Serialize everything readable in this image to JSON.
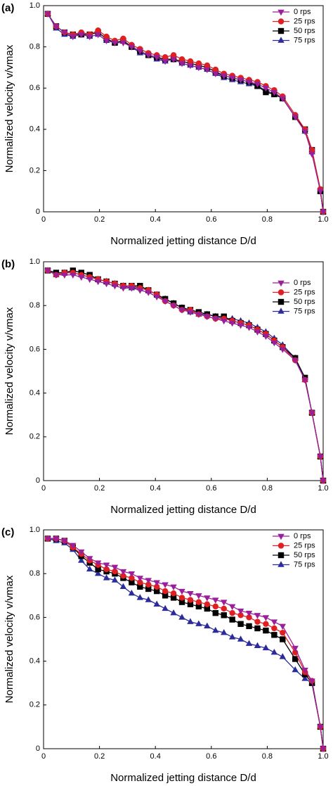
{
  "chart_data": [
    {
      "type": "line",
      "panel_label": "(a)",
      "xlabel": "Normalized jetting distance D/d",
      "ylabel": "Normalized velocity v/vmax",
      "x": [
        0.015,
        0.045,
        0.075,
        0.105,
        0.135,
        0.165,
        0.195,
        0.225,
        0.255,
        0.285,
        0.315,
        0.345,
        0.375,
        0.405,
        0.435,
        0.465,
        0.495,
        0.525,
        0.555,
        0.585,
        0.615,
        0.645,
        0.675,
        0.705,
        0.735,
        0.765,
        0.795,
        0.825,
        0.855,
        0.9,
        0.935,
        0.96,
        0.99,
        1.0
      ],
      "xlim": [
        0,
        1
      ],
      "xticks": [
        0,
        0.2,
        0.4,
        0.6,
        0.8,
        {
          "value": 1,
          "label": "1.0"
        }
      ],
      "ylim": [
        0,
        1
      ],
      "yticks": [
        0,
        0.2,
        0.4,
        0.6,
        0.8,
        {
          "value": 1,
          "label": "1.0"
        }
      ],
      "legend": "upper right",
      "series": [
        {
          "name": "0 rps",
          "color": "#9b1f9b",
          "marker": "triangle-down",
          "values": [
            0.96,
            0.9,
            0.87,
            0.85,
            0.86,
            0.85,
            0.86,
            0.83,
            0.82,
            0.82,
            0.8,
            0.78,
            0.76,
            0.75,
            0.73,
            0.74,
            0.72,
            0.71,
            0.7,
            0.69,
            0.67,
            0.66,
            0.65,
            0.64,
            0.63,
            0.62,
            0.6,
            0.58,
            0.55,
            0.46,
            0.39,
            0.28,
            0.1,
            0
          ]
        },
        {
          "name": "25 rps",
          "color": "#e02020",
          "marker": "circle",
          "values": [
            0.96,
            0.9,
            0.87,
            0.86,
            0.87,
            0.86,
            0.88,
            0.85,
            0.83,
            0.84,
            0.81,
            0.79,
            0.77,
            0.76,
            0.75,
            0.76,
            0.74,
            0.73,
            0.72,
            0.71,
            0.69,
            0.67,
            0.66,
            0.65,
            0.64,
            0.63,
            0.61,
            0.59,
            0.56,
            0.47,
            0.4,
            0.3,
            0.11,
            0
          ]
        },
        {
          "name": "50 rps",
          "color": "#000000",
          "marker": "square",
          "values": [
            0.96,
            0.9,
            0.87,
            0.86,
            0.86,
            0.86,
            0.87,
            0.84,
            0.82,
            0.83,
            0.8,
            0.78,
            0.76,
            0.75,
            0.74,
            0.74,
            0.73,
            0.72,
            0.71,
            0.7,
            0.68,
            0.66,
            0.65,
            0.64,
            0.63,
            0.61,
            0.58,
            0.57,
            0.55,
            0.46,
            0.4,
            0.3,
            0.1,
            0
          ]
        },
        {
          "name": "75 rps",
          "color": "#2b2b9b",
          "marker": "triangle-up",
          "values": [
            0.96,
            0.89,
            0.86,
            0.85,
            0.86,
            0.85,
            0.86,
            0.83,
            0.82,
            0.83,
            0.8,
            0.77,
            0.76,
            0.74,
            0.73,
            0.74,
            0.72,
            0.71,
            0.7,
            0.69,
            0.67,
            0.65,
            0.64,
            0.63,
            0.62,
            0.61,
            0.59,
            0.57,
            0.55,
            0.46,
            0.39,
            0.29,
            0.1,
            0
          ]
        }
      ]
    },
    {
      "type": "line",
      "panel_label": "(b)",
      "xlabel": "Normalized jetting distance D/d",
      "ylabel": "Normalized velocity v/vmax",
      "x": [
        0.015,
        0.045,
        0.075,
        0.105,
        0.135,
        0.165,
        0.195,
        0.225,
        0.255,
        0.285,
        0.315,
        0.345,
        0.375,
        0.405,
        0.435,
        0.465,
        0.495,
        0.525,
        0.555,
        0.585,
        0.615,
        0.645,
        0.675,
        0.705,
        0.735,
        0.765,
        0.795,
        0.825,
        0.855,
        0.9,
        0.935,
        0.96,
        0.99,
        1.0
      ],
      "xlim": [
        0,
        1
      ],
      "xticks": [
        0,
        0.2,
        0.4,
        0.6,
        0.8,
        {
          "value": 1,
          "label": "1.0"
        }
      ],
      "ylim": [
        0,
        1
      ],
      "yticks": [
        0,
        0.2,
        0.4,
        0.6,
        0.8,
        {
          "value": 1,
          "label": "1.0"
        }
      ],
      "legend": "right",
      "series": [
        {
          "name": "0 rps",
          "color": "#9b1f9b",
          "marker": "triangle-down",
          "values": [
            0.96,
            0.94,
            0.94,
            0.94,
            0.93,
            0.92,
            0.91,
            0.9,
            0.89,
            0.88,
            0.88,
            0.87,
            0.86,
            0.84,
            0.82,
            0.8,
            0.78,
            0.77,
            0.76,
            0.75,
            0.74,
            0.73,
            0.72,
            0.71,
            0.7,
            0.68,
            0.66,
            0.63,
            0.6,
            0.55,
            0.46,
            0.31,
            0.11,
            0
          ]
        },
        {
          "name": "25 rps",
          "color": "#e02020",
          "marker": "circle",
          "values": [
            0.96,
            0.94,
            0.95,
            0.95,
            0.94,
            0.93,
            0.92,
            0.91,
            0.9,
            0.89,
            0.89,
            0.88,
            0.87,
            0.85,
            0.82,
            0.8,
            0.78,
            0.78,
            0.76,
            0.75,
            0.74,
            0.74,
            0.73,
            0.72,
            0.71,
            0.69,
            0.67,
            0.64,
            0.61,
            0.55,
            0.46,
            0.31,
            0.11,
            0
          ]
        },
        {
          "name": "50 rps",
          "color": "#000000",
          "marker": "square",
          "values": [
            0.96,
            0.95,
            0.95,
            0.96,
            0.95,
            0.94,
            0.92,
            0.91,
            0.9,
            0.89,
            0.89,
            0.89,
            0.87,
            0.85,
            0.83,
            0.81,
            0.79,
            0.78,
            0.77,
            0.76,
            0.75,
            0.75,
            0.73,
            0.72,
            0.71,
            0.69,
            0.67,
            0.64,
            0.61,
            0.56,
            0.47,
            0.31,
            0.11,
            0
          ]
        },
        {
          "name": "75 rps",
          "color": "#2b2b9b",
          "marker": "triangle-up",
          "values": [
            0.96,
            0.94,
            0.95,
            0.95,
            0.94,
            0.93,
            0.92,
            0.91,
            0.9,
            0.89,
            0.88,
            0.88,
            0.87,
            0.85,
            0.83,
            0.81,
            0.79,
            0.77,
            0.76,
            0.76,
            0.75,
            0.74,
            0.74,
            0.73,
            0.72,
            0.7,
            0.68,
            0.65,
            0.62,
            0.56,
            0.46,
            0.31,
            0.11,
            0
          ]
        }
      ]
    },
    {
      "type": "line",
      "panel_label": "(c)",
      "xlabel": "Normalized jetting distance D/d",
      "ylabel": "Normalized velocity v/vmax",
      "x": [
        0.015,
        0.045,
        0.075,
        0.105,
        0.135,
        0.165,
        0.195,
        0.225,
        0.255,
        0.285,
        0.315,
        0.345,
        0.375,
        0.405,
        0.435,
        0.465,
        0.495,
        0.525,
        0.555,
        0.585,
        0.615,
        0.645,
        0.675,
        0.705,
        0.735,
        0.765,
        0.795,
        0.825,
        0.855,
        0.9,
        0.935,
        0.96,
        0.99,
        1.0
      ],
      "xlim": [
        0,
        1
      ],
      "xticks": [
        0,
        0.2,
        0.4,
        0.6,
        0.8,
        {
          "value": 1,
          "label": "1.0"
        }
      ],
      "ylim": [
        0,
        1
      ],
      "yticks": [
        0,
        0.2,
        0.4,
        0.6,
        0.8,
        {
          "value": 1,
          "label": "1.0"
        }
      ],
      "legend": "upper right",
      "series": [
        {
          "name": "0 rps",
          "color": "#9b1f9b",
          "marker": "triangle-down",
          "values": [
            0.96,
            0.96,
            0.95,
            0.93,
            0.9,
            0.87,
            0.85,
            0.84,
            0.83,
            0.81,
            0.8,
            0.78,
            0.77,
            0.76,
            0.75,
            0.74,
            0.72,
            0.71,
            0.7,
            0.69,
            0.68,
            0.67,
            0.65,
            0.63,
            0.62,
            0.61,
            0.6,
            0.58,
            0.56,
            0.46,
            0.36,
            0.31,
            0.1,
            0
          ]
        },
        {
          "name": "25 rps",
          "color": "#e02020",
          "marker": "circle",
          "values": [
            0.96,
            0.96,
            0.95,
            0.92,
            0.89,
            0.86,
            0.84,
            0.82,
            0.81,
            0.79,
            0.78,
            0.76,
            0.75,
            0.74,
            0.72,
            0.71,
            0.69,
            0.68,
            0.67,
            0.66,
            0.65,
            0.64,
            0.62,
            0.61,
            0.6,
            0.58,
            0.57,
            0.55,
            0.53,
            0.44,
            0.35,
            0.31,
            0.1,
            0
          ]
        },
        {
          "name": "50 rps",
          "color": "#000000",
          "marker": "square",
          "values": [
            0.96,
            0.96,
            0.95,
            0.92,
            0.88,
            0.85,
            0.82,
            0.81,
            0.8,
            0.78,
            0.76,
            0.74,
            0.73,
            0.72,
            0.7,
            0.69,
            0.67,
            0.66,
            0.65,
            0.64,
            0.62,
            0.61,
            0.59,
            0.57,
            0.56,
            0.55,
            0.54,
            0.52,
            0.5,
            0.41,
            0.34,
            0.3,
            0.1,
            0
          ]
        },
        {
          "name": "75 rps",
          "color": "#2b2b9b",
          "marker": "triangle-up",
          "values": [
            0.96,
            0.95,
            0.94,
            0.91,
            0.86,
            0.82,
            0.8,
            0.78,
            0.77,
            0.74,
            0.71,
            0.69,
            0.68,
            0.66,
            0.64,
            0.62,
            0.6,
            0.58,
            0.57,
            0.56,
            0.54,
            0.53,
            0.51,
            0.5,
            0.48,
            0.47,
            0.46,
            0.44,
            0.42,
            0.36,
            0.32,
            0.3,
            0.1,
            0
          ]
        }
      ]
    }
  ]
}
